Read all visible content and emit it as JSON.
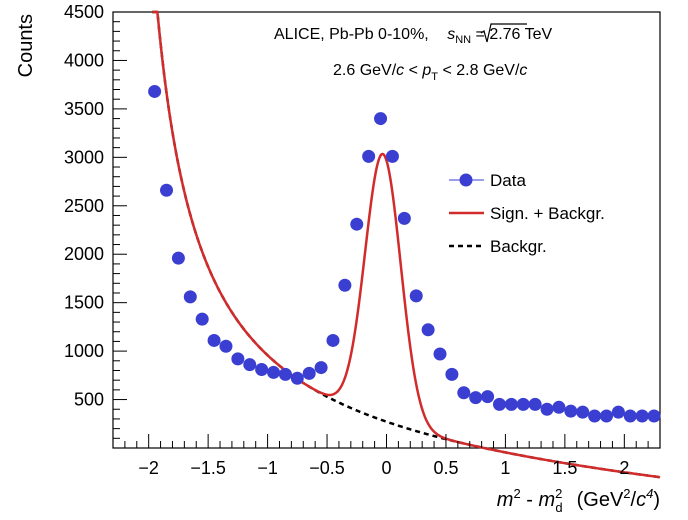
{
  "chart_data": {
    "type": "scatter",
    "xlabel": "m² - m²_d  (GeV²/c⁴)",
    "xlabel_parts": {
      "m": "m",
      "sup2": "2",
      "minus": " - ",
      "sub_d": "d",
      "units_open": "(GeV",
      "units_mid": "/",
      "units_c": "c",
      "sup4": "4",
      "units_close": ")"
    },
    "ylabel": "Counts",
    "xlim": [
      -2.3,
      2.3
    ],
    "ylim": [
      0,
      4500
    ],
    "x_ticks": [
      -2,
      -1.5,
      -1,
      -0.5,
      0,
      0.5,
      1,
      1.5,
      2
    ],
    "x_tick_labels": [
      "−2",
      "−1.5",
      "−1",
      "−0.5",
      "0",
      "0.5",
      "1",
      "1.5",
      "2"
    ],
    "y_ticks": [
      500,
      1000,
      1500,
      2000,
      2500,
      3000,
      3500,
      4000,
      4500
    ],
    "y_tick_labels": [
      "500",
      "1000",
      "1500",
      "2000",
      "2500",
      "3000",
      "3500",
      "4000",
      "4500"
    ],
    "grid": false,
    "legend_position": "right",
    "annotation": {
      "line1_prefix": "ALICE, Pb-Pb 0-10%, ",
      "sqrt_s": "s",
      "sqrt_sub": "NN",
      "line1_suffix": " = 2.76 TeV",
      "line2_prefix": "2.6 GeV/",
      "line2_c": "c",
      "line2_lt1": " < ",
      "line2_p": "p",
      "line2_psub": "T",
      "line2_lt2": " < 2.8 GeV/",
      "line2_c2": "c"
    },
    "series": [
      {
        "name": "Data",
        "type": "scatter",
        "color": "#3a3fd1",
        "x": [
          -1.95,
          -1.85,
          -1.75,
          -1.65,
          -1.55,
          -1.45,
          -1.35,
          -1.25,
          -1.15,
          -1.05,
          -0.95,
          -0.85,
          -0.75,
          -0.65,
          -0.55,
          -0.45,
          -0.35,
          -0.25,
          -0.15,
          -0.05,
          0.05,
          0.15,
          0.25,
          0.35,
          0.45,
          0.55,
          0.65,
          0.75,
          0.85,
          0.95,
          1.05,
          1.15,
          1.25,
          1.35,
          1.45,
          1.55,
          1.65,
          1.75,
          1.85,
          1.95,
          2.05,
          2.15,
          2.25
        ],
        "y": [
          3680,
          2660,
          1960,
          1560,
          1330,
          1110,
          1050,
          920,
          860,
          810,
          780,
          760,
          720,
          770,
          830,
          1110,
          1680,
          2310,
          3010,
          3400,
          3010,
          2370,
          1570,
          1220,
          970,
          760,
          570,
          520,
          530,
          450,
          450,
          450,
          450,
          400,
          420,
          380,
          370,
          330,
          330,
          370,
          330,
          330,
          330
        ]
      },
      {
        "name": "Sign. + Backgr.",
        "type": "line",
        "color": "#d12b2b"
      },
      {
        "name": "Backgr.",
        "type": "line",
        "color": "#000000",
        "style": "dashed"
      }
    ],
    "fit_model": {
      "background": {
        "b0": -520,
        "b1": 1820,
        "shift": 2.3,
        "b2": -77
      },
      "signal": {
        "amplitude": 2750,
        "mean": -0.03,
        "sigma": 0.15
      }
    }
  }
}
